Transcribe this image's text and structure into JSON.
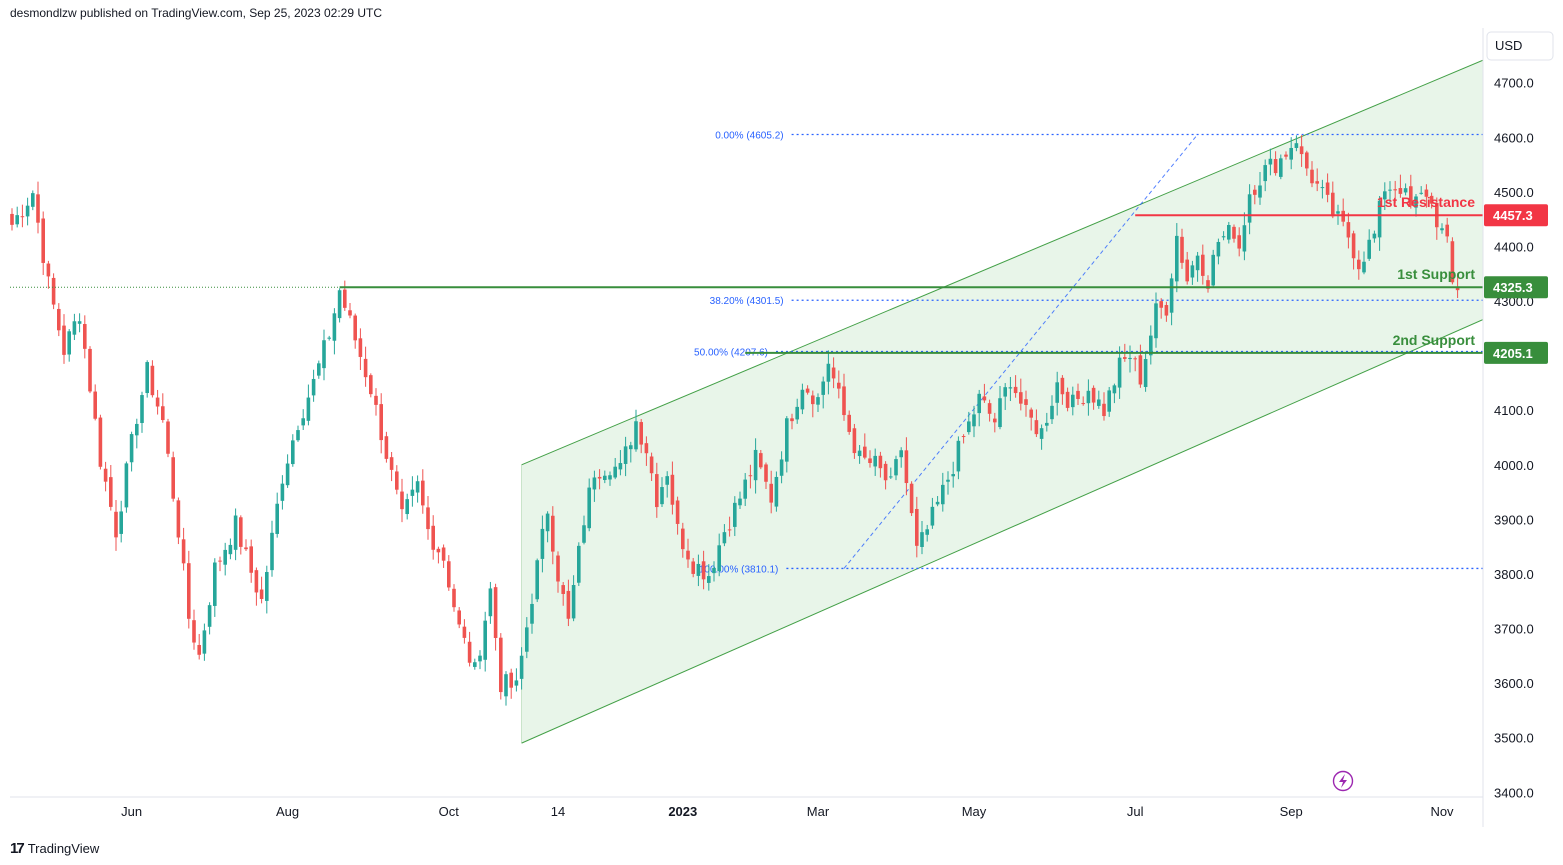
{
  "header": {
    "publisher_line": "desmondlzw published on TradingView.com, Sep 25, 2023 02:29 UTC"
  },
  "footer": {
    "brand_logo": "17",
    "brand_name": "TradingView"
  },
  "axis": {
    "currency": "USD",
    "price_ticks": [
      3400,
      3500,
      3600,
      3700,
      3800,
      3900,
      4000,
      4100,
      4200,
      4300,
      4400,
      4500,
      4600,
      4700
    ],
    "time_ticks": [
      {
        "label": "Jun",
        "bold": false
      },
      {
        "label": "Aug",
        "bold": false
      },
      {
        "label": "Oct",
        "bold": false
      },
      {
        "label": "14",
        "bold": false
      },
      {
        "label": "2023",
        "bold": true
      },
      {
        "label": "Mar",
        "bold": false
      },
      {
        "label": "May",
        "bold": false
      },
      {
        "label": "Jul",
        "bold": false
      },
      {
        "label": "Sep",
        "bold": false
      },
      {
        "label": "Nov",
        "bold": false
      }
    ]
  },
  "colors": {
    "up": "#26a69a",
    "down": "#ef5350",
    "channel_fill": "#e8f5e9",
    "channel_line": "#43a047",
    "support": "#388e3c",
    "resistance": "#f23645",
    "fib": "#2962ff",
    "text": "#131722"
  },
  "chart_data": {
    "type": "candlestick",
    "title": "",
    "ylim": [
      3340,
      4760
    ],
    "xlabel": "",
    "ylabel": "USD",
    "levels": [
      {
        "name": "1st Resistance",
        "label": "1st Resistance",
        "value": 4457.3,
        "value_label": "4457.3",
        "kind": "resistance"
      },
      {
        "name": "1st Support",
        "label": "1st Support",
        "value": 4325.3,
        "value_label": "4325.3",
        "kind": "support"
      },
      {
        "name": "2nd Support",
        "label": "2nd Support",
        "value": 4205.1,
        "value_label": "4205.1",
        "kind": "support"
      }
    ],
    "fibonacci": [
      {
        "label": "0.00% (4605.2)",
        "value": 4605.2
      },
      {
        "label": "38.20% (4301.5)",
        "value": 4301.5
      },
      {
        "label": "50.00% (4207.6)",
        "value": 4207.6
      },
      {
        "label": "100.00% (3810.1)",
        "value": 3810.1
      }
    ],
    "channel": {
      "start_index": 98,
      "end_index": 300,
      "upper_start": 4000,
      "upper_end": 4810,
      "lower_start": 3490,
      "lower_end": 4338
    },
    "anchors": [
      [
        0,
        4440
      ],
      [
        4,
        4500
      ],
      [
        7,
        4330
      ],
      [
        10,
        4210
      ],
      [
        13,
        4280
      ],
      [
        17,
        4010
      ],
      [
        20,
        3880
      ],
      [
        24,
        4090
      ],
      [
        26,
        4170
      ],
      [
        29,
        4080
      ],
      [
        32,
        3880
      ],
      [
        34,
        3720
      ],
      [
        36,
        3650
      ],
      [
        39,
        3810
      ],
      [
        43,
        3890
      ],
      [
        45,
        3830
      ],
      [
        48,
        3750
      ],
      [
        52,
        3980
      ],
      [
        55,
        4080
      ],
      [
        58,
        4150
      ],
      [
        61,
        4240
      ],
      [
        63,
        4320
      ],
      [
        66,
        4230
      ],
      [
        69,
        4140
      ],
      [
        72,
        4020
      ],
      [
        75,
        3900
      ],
      [
        78,
        3960
      ],
      [
        80,
        3880
      ],
      [
        83,
        3830
      ],
      [
        86,
        3700
      ],
      [
        89,
        3620
      ],
      [
        92,
        3770
      ],
      [
        94,
        3600
      ],
      [
        97,
        3590
      ],
      [
        100,
        3760
      ],
      [
        103,
        3920
      ],
      [
        105,
        3800
      ],
      [
        107,
        3710
      ],
      [
        110,
        3900
      ],
      [
        112,
        3990
      ],
      [
        115,
        4000
      ],
      [
        117,
        3990
      ],
      [
        120,
        4080
      ],
      [
        122,
        4030
      ],
      [
        124,
        3940
      ],
      [
        126,
        3990
      ],
      [
        128,
        3880
      ],
      [
        131,
        3820
      ],
      [
        134,
        3800
      ],
      [
        137,
        3880
      ],
      [
        140,
        3940
      ],
      [
        143,
        4010
      ],
      [
        146,
        3940
      ],
      [
        149,
        4070
      ],
      [
        152,
        4150
      ],
      [
        155,
        4120
      ],
      [
        157,
        4190
      ],
      [
        160,
        4090
      ],
      [
        163,
        4010
      ],
      [
        166,
        4000
      ],
      [
        169,
        3960
      ],
      [
        171,
        4030
      ],
      [
        174,
        3840
      ],
      [
        176,
        3880
      ],
      [
        179,
        3950
      ],
      [
        183,
        4050
      ],
      [
        186,
        4120
      ],
      [
        189,
        4080
      ],
      [
        192,
        4160
      ],
      [
        195,
        4090
      ],
      [
        198,
        4060
      ],
      [
        201,
        4150
      ],
      [
        204,
        4110
      ],
      [
        207,
        4140
      ],
      [
        210,
        4100
      ],
      [
        213,
        4180
      ],
      [
        215,
        4200
      ],
      [
        217,
        4160
      ],
      [
        220,
        4280
      ],
      [
        222,
        4290
      ],
      [
        224,
        4420
      ],
      [
        226,
        4340
      ],
      [
        228,
        4390
      ],
      [
        230,
        4340
      ],
      [
        232,
        4410
      ],
      [
        235,
        4430
      ],
      [
        236,
        4400
      ],
      [
        238,
        4500
      ],
      [
        241,
        4540
      ],
      [
        244,
        4560
      ],
      [
        247,
        4600
      ],
      [
        248,
        4560
      ],
      [
        251,
        4510
      ],
      [
        254,
        4460
      ],
      [
        257,
        4420
      ],
      [
        259,
        4370
      ],
      [
        262,
        4420
      ],
      [
        264,
        4510
      ],
      [
        267,
        4510
      ],
      [
        269,
        4470
      ],
      [
        272,
        4500
      ],
      [
        274,
        4450
      ],
      [
        276,
        4400
      ],
      [
        277,
        4330
      ],
      [
        278,
        4320
      ]
    ]
  }
}
